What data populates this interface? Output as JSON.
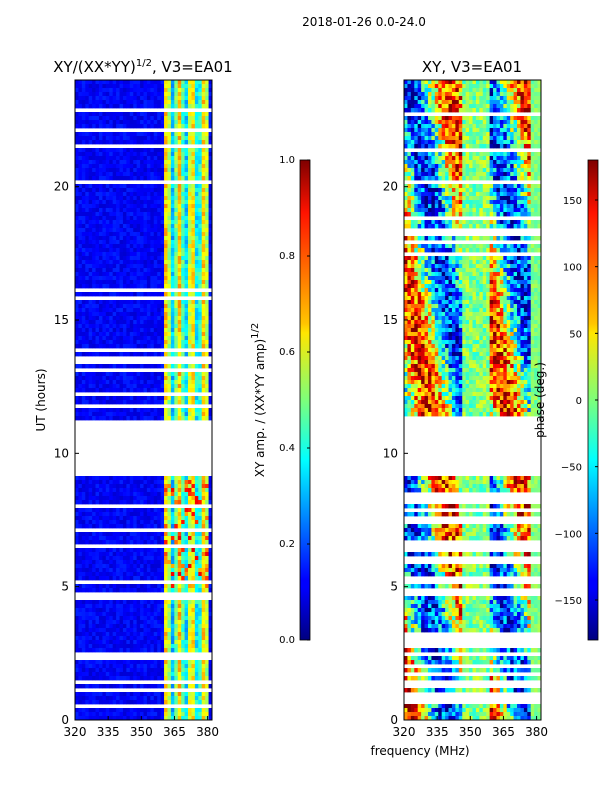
{
  "chart_data": {
    "type": "heatmap",
    "suptitle": "2018-01-26 0.0-24.0",
    "shared_xlabel": "frequency (MHz)",
    "panels": [
      {
        "id": "amp",
        "title_main": "XY/(XX*YY)",
        "title_sup": "1/2",
        "title_rest": ", V3=EA01",
        "ylabel": "UT (hours)",
        "xlim": [
          320,
          382
        ],
        "ylim": [
          0,
          24
        ],
        "xticks": [
          "320",
          "335",
          "350",
          "365",
          "380"
        ],
        "xtick_values": [
          320,
          335,
          350,
          365,
          380
        ],
        "yticks": [
          "0",
          "5",
          "10",
          "15",
          "20"
        ],
        "ytick_values": [
          0,
          5,
          10,
          15,
          20
        ],
        "blank_ut_range": [
          9.1,
          11.3
        ],
        "colorbar": {
          "label_main": "XY amp. / (XX*YY amp)",
          "label_sup": "1/2",
          "range": [
            0.0,
            1.0
          ],
          "ticks": [
            "0.0",
            "0.2",
            "0.4",
            "0.6",
            "0.8",
            "1.0"
          ],
          "tick_values": [
            0.0,
            0.2,
            0.4,
            0.6,
            0.8,
            1.0
          ]
        }
      },
      {
        "id": "phase",
        "title_main": "XY, V3=EA01",
        "ylabel": "",
        "xlim": [
          320,
          382
        ],
        "ylim": [
          0,
          24
        ],
        "xticks": [
          "320",
          "335",
          "350",
          "365",
          "380"
        ],
        "xtick_values": [
          320,
          335,
          350,
          365,
          380
        ],
        "yticks": [
          "0",
          "5",
          "10",
          "15",
          "20"
        ],
        "ytick_values": [
          0,
          5,
          10,
          15,
          20
        ],
        "blank_ut_range": [
          9.1,
          11.3
        ],
        "colorbar": {
          "label_main": "phase (deg.)",
          "range": [
            -180,
            180
          ],
          "ticks": [
            "−150",
            "−100",
            "−50",
            "0",
            "50",
            "100",
            "150"
          ],
          "tick_values": [
            -150,
            -100,
            -50,
            0,
            50,
            100,
            150
          ]
        }
      }
    ]
  }
}
